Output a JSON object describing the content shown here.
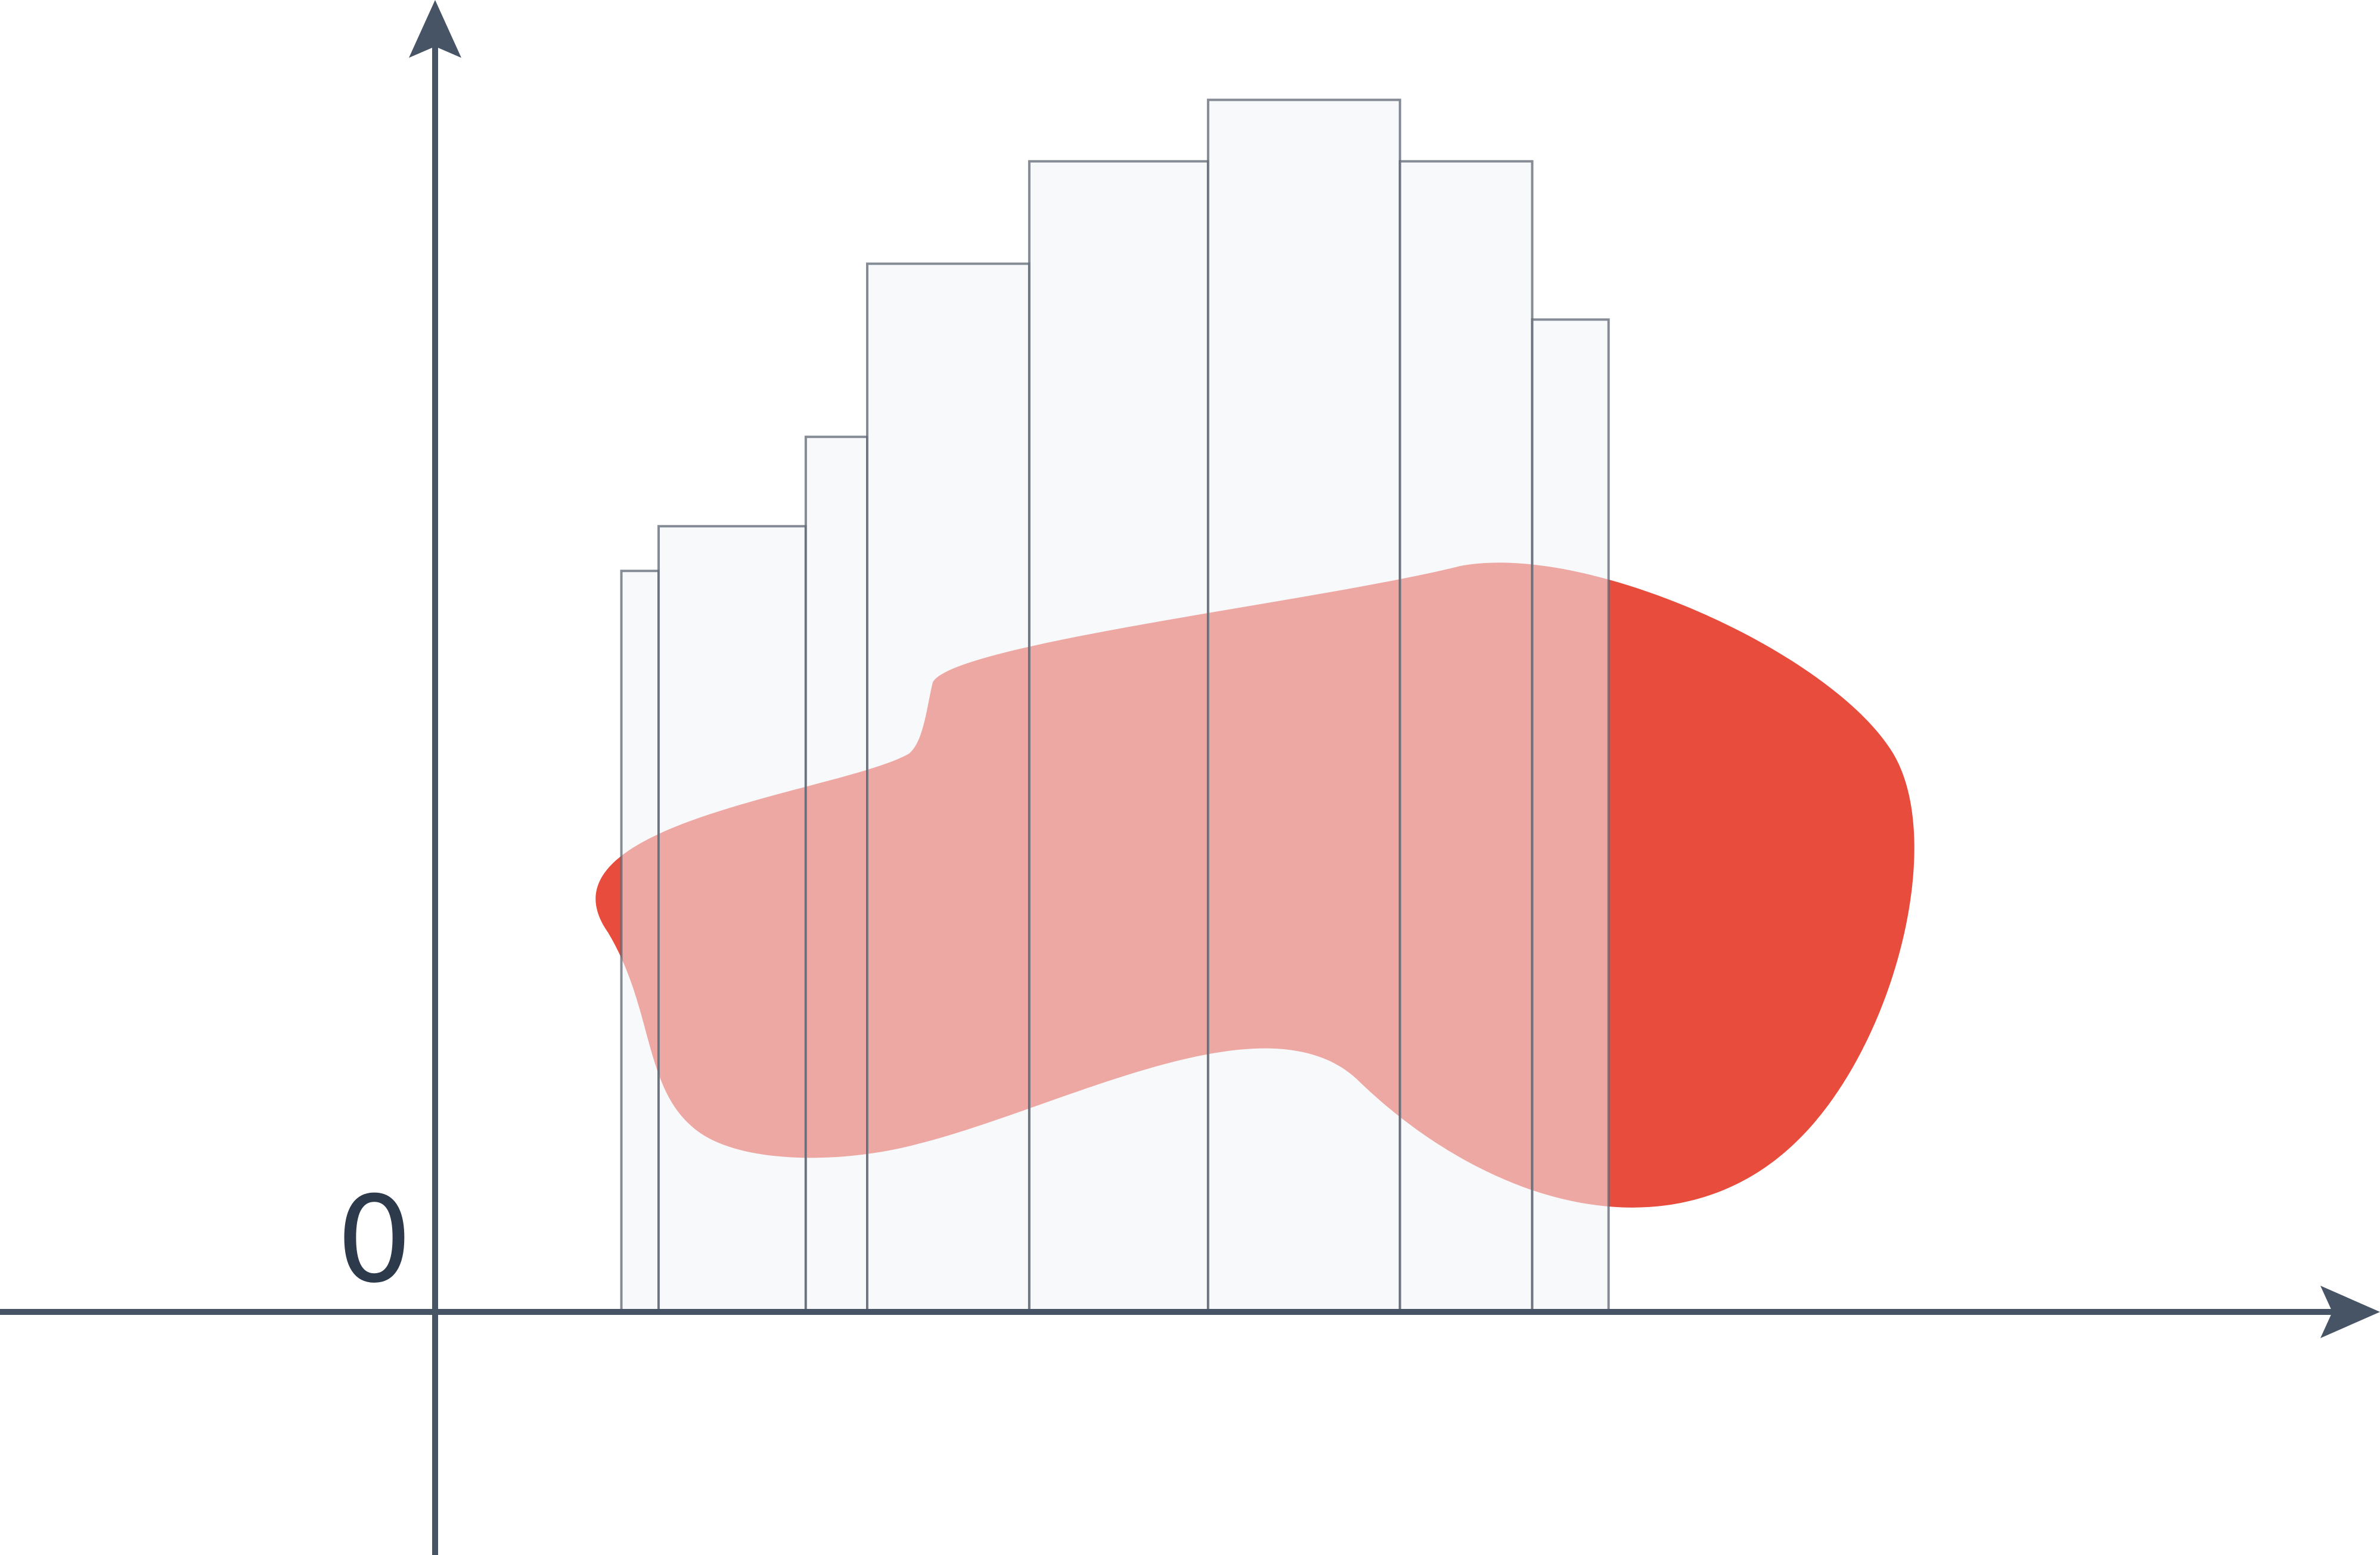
{
  "diagram": {
    "origin_label": "0",
    "colors": {
      "axis": "#475465",
      "region_fill": "#e74c3c",
      "bar_fill": "#f3f4f7",
      "bar_fill_opacity": 0.55,
      "bar_stroke": "#5d6573",
      "label": "#2c3a4b",
      "background": "#ffffff"
    },
    "x_axis": {
      "arrow": "right-arrow-icon"
    },
    "y_axis": {
      "arrow": "up-arrow-icon"
    },
    "bars": [
      {
        "x0": 1.0,
        "x1": 1.2,
        "height": 3.98
      },
      {
        "x0": 1.2,
        "x1": 1.99,
        "height": 4.22
      },
      {
        "x0": 1.99,
        "x1": 2.32,
        "height": 4.7
      },
      {
        "x0": 2.32,
        "x1": 3.19,
        "height": 5.63
      },
      {
        "x0": 3.19,
        "x1": 4.15,
        "height": 6.18
      },
      {
        "x0": 4.15,
        "x1": 5.18,
        "height": 6.51
      },
      {
        "x0": 5.18,
        "x1": 5.89,
        "height": 6.18
      },
      {
        "x0": 5.89,
        "x1": 6.3,
        "height": 5.33
      }
    ]
  }
}
